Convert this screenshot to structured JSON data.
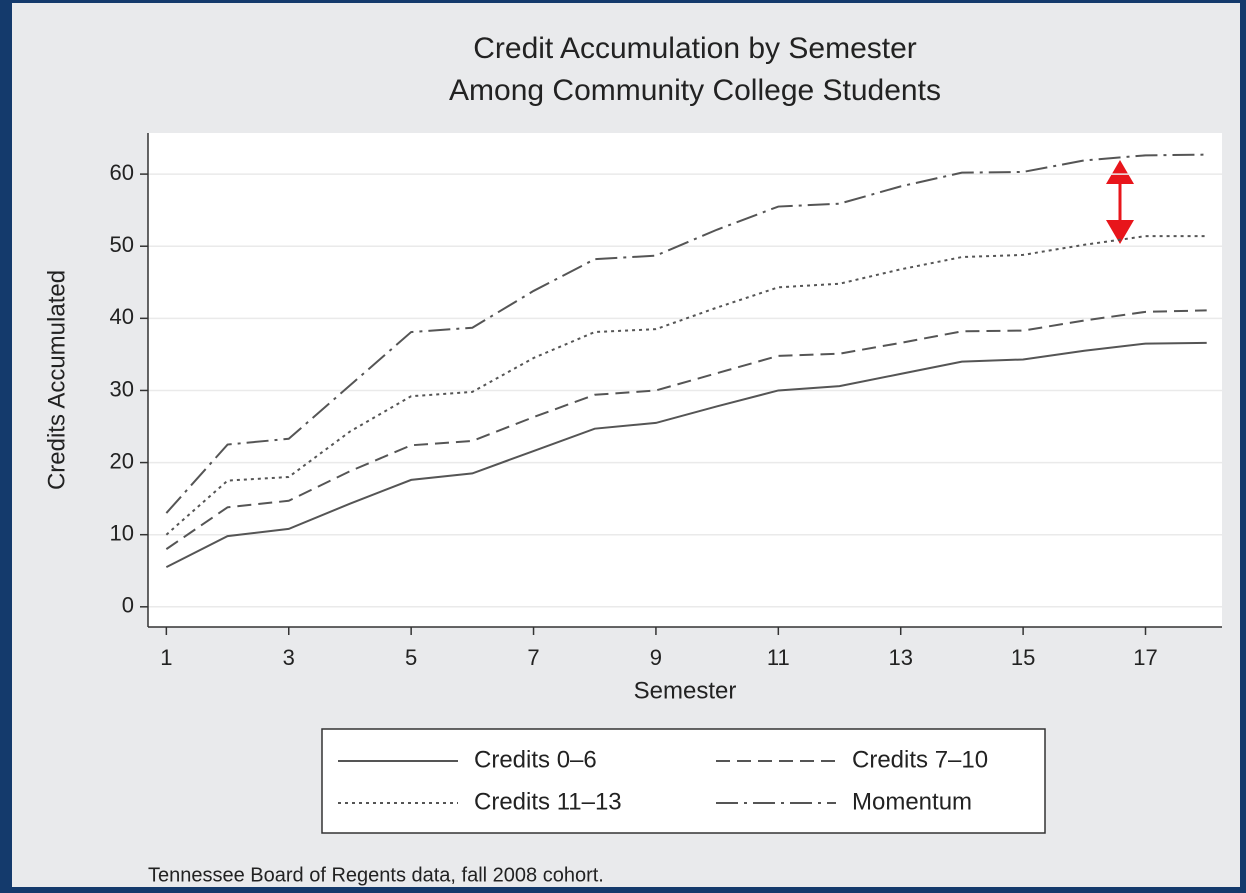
{
  "chart_data": {
    "type": "line",
    "title": [
      "Credit Accumulation by Semester",
      "Among Community College Students"
    ],
    "x_label": "Semester",
    "y_label": "Credits Accumulated",
    "x": [
      1,
      2,
      3,
      4,
      5,
      6,
      7,
      8,
      9,
      10,
      11,
      12,
      13,
      14,
      15,
      16,
      17,
      18
    ],
    "series": [
      {
        "name": "Credits 0–6",
        "color": "#555555",
        "style": "solid",
        "values": [
          5.5,
          9.8,
          10.8,
          14.3,
          17.6,
          18.5,
          21.6,
          24.7,
          25.5,
          27.8,
          30,
          30.6,
          32.3,
          34,
          34.3,
          35.5,
          36.5,
          36.6
        ]
      },
      {
        "name": "Credits 7–10",
        "color": "#555555",
        "style": "dashed",
        "values": [
          8,
          13.8,
          14.7,
          18.8,
          22.4,
          23,
          26.3,
          29.4,
          30,
          32.4,
          34.8,
          35.1,
          36.6,
          38.2,
          38.3,
          39.7,
          40.9,
          41.1
        ]
      },
      {
        "name": "Credits 11–13",
        "color": "#555555",
        "style": "dotted",
        "values": [
          10,
          17.5,
          18,
          24.3,
          29.2,
          29.8,
          34.5,
          38.1,
          38.5,
          41.5,
          44.3,
          44.8,
          46.8,
          48.5,
          48.8,
          50.2,
          51.4,
          51.4
        ]
      },
      {
        "name": "Momentum",
        "color": "#555555",
        "style": "dashdot",
        "values": [
          13,
          22.5,
          23.3,
          30.7,
          38.1,
          38.7,
          43.8,
          48.2,
          48.7,
          52.3,
          55.5,
          55.9,
          58.3,
          60.2,
          60.3,
          61.9,
          62.6,
          62.7
        ]
      }
    ],
    "xlim": [
      0.7,
      18.25
    ],
    "xticks": [
      1,
      3,
      5,
      7,
      9,
      11,
      13,
      15,
      17
    ],
    "ylim": [
      -2.8,
      65.7
    ],
    "yticks": [
      0,
      10,
      20,
      30,
      40,
      50,
      60
    ],
    "grid": true,
    "note": "Tennessee Board of Regents data, fall 2008 cohort."
  }
}
